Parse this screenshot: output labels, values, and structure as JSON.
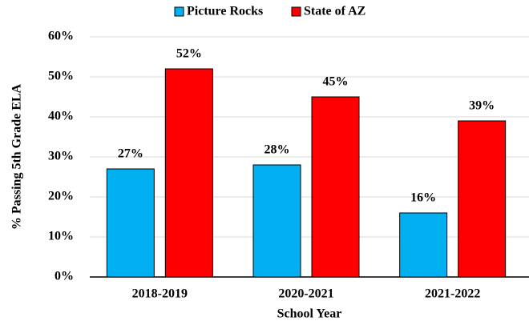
{
  "chart_data": {
    "type": "bar",
    "categories": [
      "2018-2019",
      "2020-2021",
      "2021-2022"
    ],
    "series": [
      {
        "name": "Picture Rocks",
        "color": "#00b0f0",
        "values": [
          27,
          28,
          16
        ],
        "value_labels": [
          "27%",
          "28%",
          "16%"
        ]
      },
      {
        "name": "State of AZ",
        "color": "#ff0000",
        "values": [
          52,
          45,
          39
        ],
        "value_labels": [
          "52%",
          "45%",
          "39%"
        ]
      }
    ],
    "xlabel": "School Year",
    "ylabel": "% Passing 5th Grade ELA",
    "ylim": [
      0,
      60
    ],
    "yticks": [
      {
        "value": 0,
        "label": "0%"
      },
      {
        "value": 10,
        "label": "10%"
      },
      {
        "value": 20,
        "label": "20%"
      },
      {
        "value": 30,
        "label": "30%"
      },
      {
        "value": 40,
        "label": "40%"
      },
      {
        "value": 50,
        "label": "50%"
      },
      {
        "value": 60,
        "label": "60%"
      }
    ],
    "grid": true,
    "legend": "top"
  }
}
